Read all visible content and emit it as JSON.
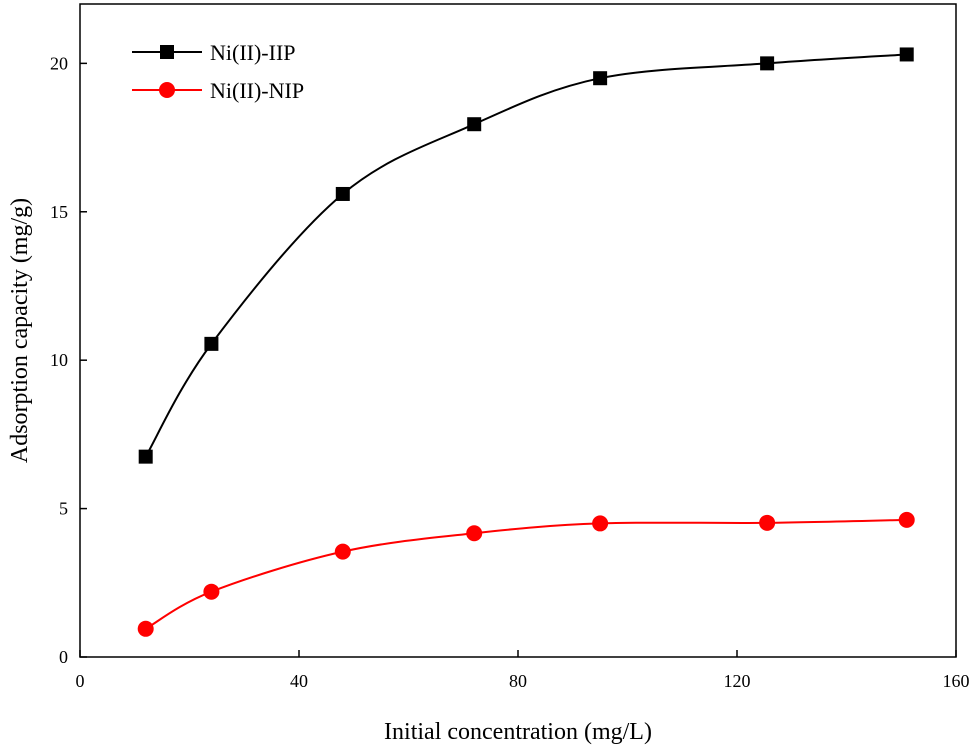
{
  "chart_data": {
    "type": "line",
    "title": "",
    "xlabel": "Initial concentration (mg/L)",
    "ylabel": "Adsorption capacity (mg/g)",
    "xlim": [
      0,
      160
    ],
    "ylim": [
      0,
      22
    ],
    "xticks": [
      0,
      40,
      80,
      120,
      160
    ],
    "yticks": [
      0,
      5,
      10,
      15,
      20
    ],
    "grid": false,
    "legend_position": "top-left",
    "x": [
      12,
      24,
      48,
      72,
      95,
      125.5,
      151
    ],
    "series": [
      {
        "name": "Ni(II)-IIP",
        "color": "#000000",
        "marker": "square",
        "values": [
          6.75,
          10.55,
          15.6,
          17.95,
          19.5,
          20.0,
          20.3
        ]
      },
      {
        "name": "Ni(II)-NIP",
        "color": "#ff0000",
        "marker": "circle",
        "values": [
          0.95,
          2.2,
          3.55,
          4.17,
          4.5,
          4.52,
          4.62
        ]
      }
    ]
  }
}
